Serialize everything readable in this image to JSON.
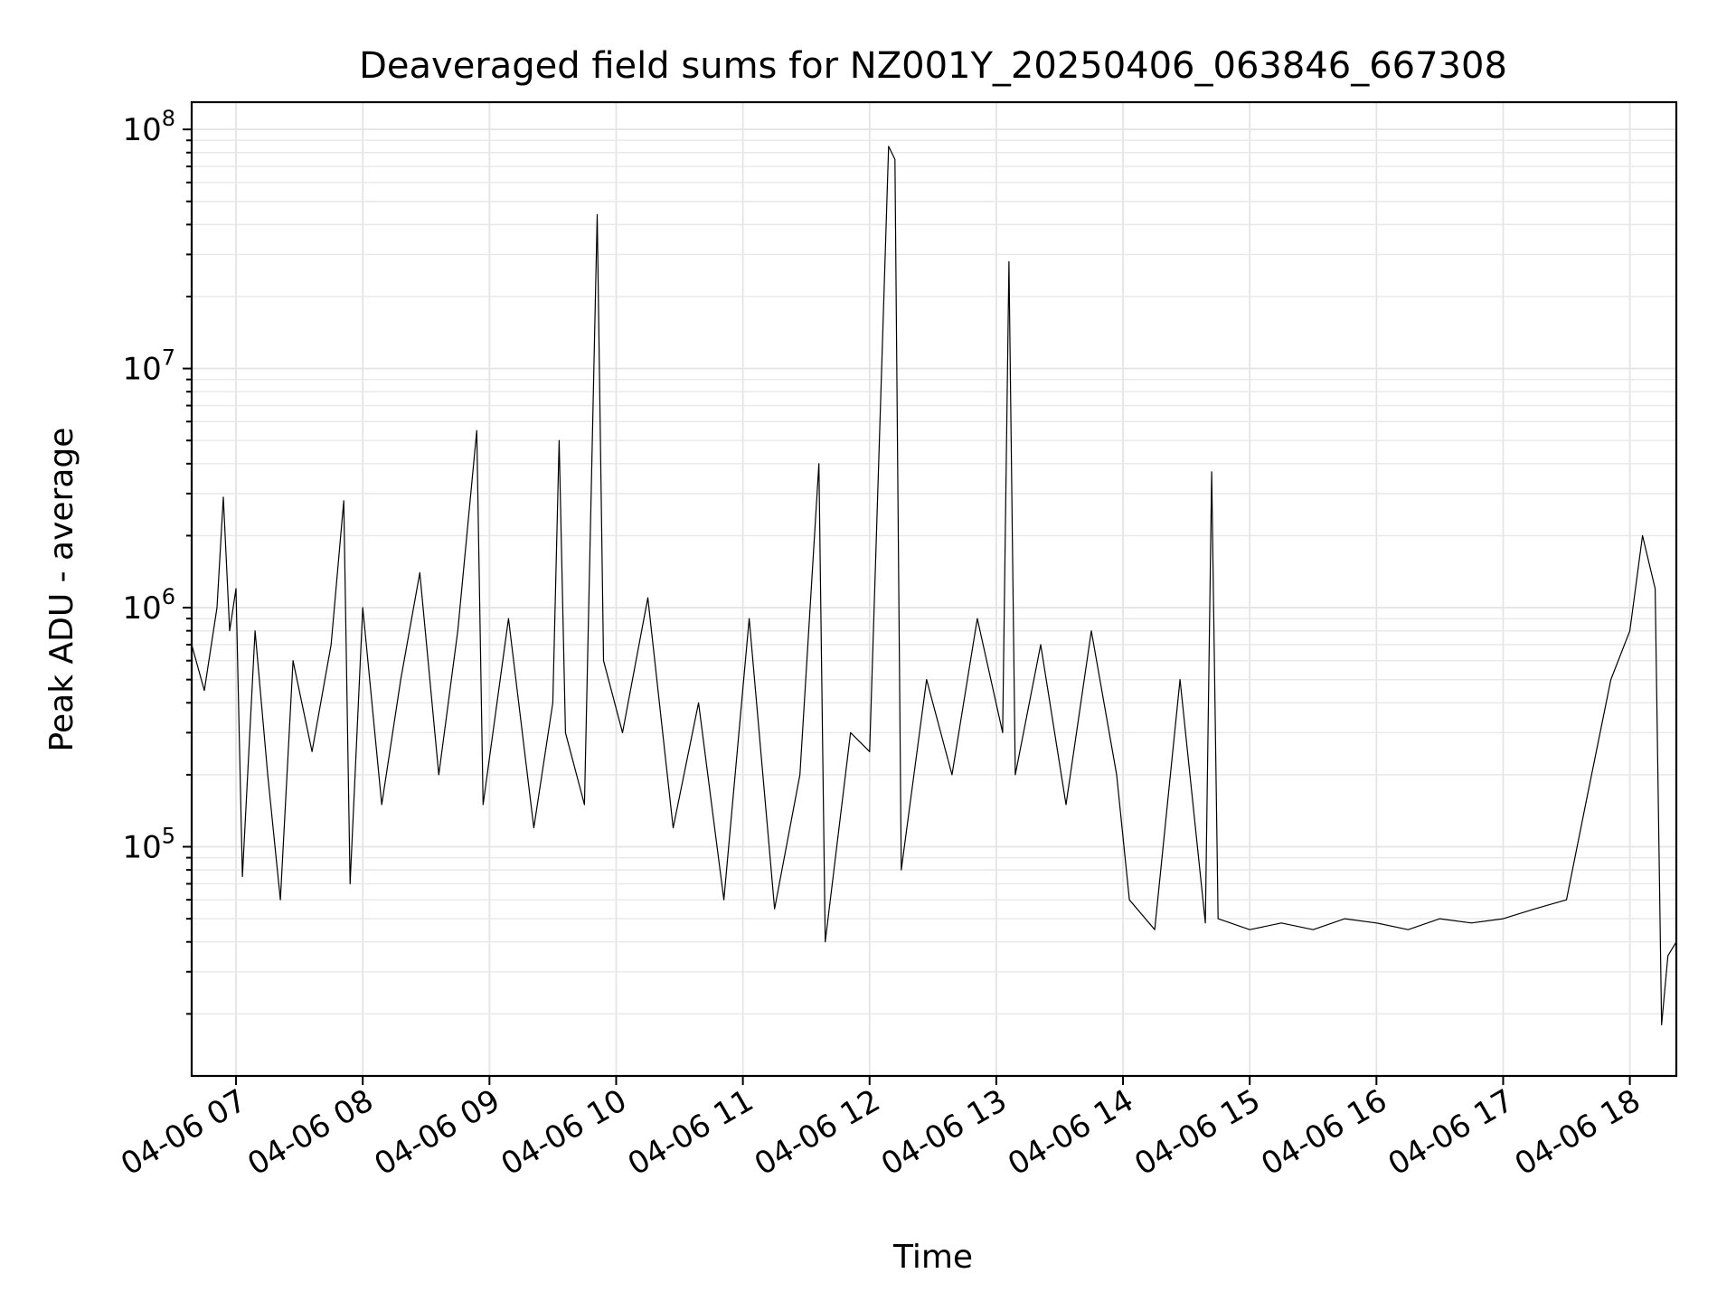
{
  "chart_data": {
    "type": "line",
    "title": "Deaveraged field sums for NZ001Y_20250406_063846_667308",
    "xlabel": "Time",
    "ylabel": "Peak ADU - average",
    "x_scale": "time",
    "y_scale": "log",
    "xlim": [
      "2025-04-06 06:39",
      "2025-04-06 18:22"
    ],
    "ylim": [
      11000,
      130000000
    ],
    "grid": true,
    "x_ticks": [
      {
        "value": "2025-04-06 07:00",
        "label": "04-06 07"
      },
      {
        "value": "2025-04-06 08:00",
        "label": "04-06 08"
      },
      {
        "value": "2025-04-06 09:00",
        "label": "04-06 09"
      },
      {
        "value": "2025-04-06 10:00",
        "label": "04-06 10"
      },
      {
        "value": "2025-04-06 11:00",
        "label": "04-06 11"
      },
      {
        "value": "2025-04-06 12:00",
        "label": "04-06 12"
      },
      {
        "value": "2025-04-06 13:00",
        "label": "04-06 13"
      },
      {
        "value": "2025-04-06 14:00",
        "label": "04-06 14"
      },
      {
        "value": "2025-04-06 15:00",
        "label": "04-06 15"
      },
      {
        "value": "2025-04-06 16:00",
        "label": "04-06 16"
      },
      {
        "value": "2025-04-06 17:00",
        "label": "04-06 17"
      },
      {
        "value": "2025-04-06 18:00",
        "label": "04-06 18"
      }
    ],
    "y_ticks": [
      {
        "value": 100000,
        "base": "10",
        "exp": "5"
      },
      {
        "value": 1000000,
        "base": "10",
        "exp": "6"
      },
      {
        "value": 10000000,
        "base": "10",
        "exp": "7"
      },
      {
        "value": 100000000,
        "base": "10",
        "exp": "8"
      }
    ],
    "colors": {
      "series": "#000000",
      "grid": "#e4e4e4"
    },
    "series": [
      {
        "points": [
          [
            "2025-04-06 06:39",
            700000
          ],
          [
            "2025-04-06 06:45",
            450000
          ],
          [
            "2025-04-06 06:51",
            1000000
          ],
          [
            "2025-04-06 06:54",
            2900000
          ],
          [
            "2025-04-06 06:57",
            800000
          ],
          [
            "2025-04-06 07:00",
            1200000
          ],
          [
            "2025-04-06 07:03",
            75000
          ],
          [
            "2025-04-06 07:09",
            800000
          ],
          [
            "2025-04-06 07:15",
            200000
          ],
          [
            "2025-04-06 07:21",
            60000
          ],
          [
            "2025-04-06 07:27",
            600000
          ],
          [
            "2025-04-06 07:36",
            250000
          ],
          [
            "2025-04-06 07:45",
            700000
          ],
          [
            "2025-04-06 07:51",
            2800000
          ],
          [
            "2025-04-06 07:54",
            70000
          ],
          [
            "2025-04-06 08:00",
            1000000
          ],
          [
            "2025-04-06 08:09",
            150000
          ],
          [
            "2025-04-06 08:18",
            500000
          ],
          [
            "2025-04-06 08:27",
            1400000
          ],
          [
            "2025-04-06 08:36",
            200000
          ],
          [
            "2025-04-06 08:45",
            800000
          ],
          [
            "2025-04-06 08:54",
            5500000
          ],
          [
            "2025-04-06 08:57",
            150000
          ],
          [
            "2025-04-06 09:09",
            900000
          ],
          [
            "2025-04-06 09:21",
            120000
          ],
          [
            "2025-04-06 09:30",
            400000
          ],
          [
            "2025-04-06 09:33",
            5000000
          ],
          [
            "2025-04-06 09:36",
            300000
          ],
          [
            "2025-04-06 09:45",
            150000
          ],
          [
            "2025-04-06 09:51",
            44000000
          ],
          [
            "2025-04-06 09:54",
            600000
          ],
          [
            "2025-04-06 10:03",
            300000
          ],
          [
            "2025-04-06 10:15",
            1100000
          ],
          [
            "2025-04-06 10:27",
            120000
          ],
          [
            "2025-04-06 10:39",
            400000
          ],
          [
            "2025-04-06 10:51",
            60000
          ],
          [
            "2025-04-06 11:03",
            900000
          ],
          [
            "2025-04-06 11:15",
            55000
          ],
          [
            "2025-04-06 11:27",
            200000
          ],
          [
            "2025-04-06 11:36",
            4000000
          ],
          [
            "2025-04-06 11:39",
            40000
          ],
          [
            "2025-04-06 11:51",
            300000
          ],
          [
            "2025-04-06 12:00",
            250000
          ],
          [
            "2025-04-06 12:09",
            85000000
          ],
          [
            "2025-04-06 12:12",
            75000000
          ],
          [
            "2025-04-06 12:15",
            80000
          ],
          [
            "2025-04-06 12:27",
            500000
          ],
          [
            "2025-04-06 12:39",
            200000
          ],
          [
            "2025-04-06 12:51",
            900000
          ],
          [
            "2025-04-06 13:03",
            300000
          ],
          [
            "2025-04-06 13:06",
            28000000
          ],
          [
            "2025-04-06 13:09",
            200000
          ],
          [
            "2025-04-06 13:21",
            700000
          ],
          [
            "2025-04-06 13:33",
            150000
          ],
          [
            "2025-04-06 13:45",
            800000
          ],
          [
            "2025-04-06 13:57",
            200000
          ],
          [
            "2025-04-06 14:03",
            60000
          ],
          [
            "2025-04-06 14:15",
            45000
          ],
          [
            "2025-04-06 14:27",
            500000
          ],
          [
            "2025-04-06 14:39",
            48000
          ],
          [
            "2025-04-06 14:42",
            3700000
          ],
          [
            "2025-04-06 14:45",
            50000
          ],
          [
            "2025-04-06 15:00",
            45000
          ],
          [
            "2025-04-06 15:15",
            48000
          ],
          [
            "2025-04-06 15:30",
            45000
          ],
          [
            "2025-04-06 15:45",
            50000
          ],
          [
            "2025-04-06 16:00",
            48000
          ],
          [
            "2025-04-06 16:15",
            45000
          ],
          [
            "2025-04-06 16:30",
            50000
          ],
          [
            "2025-04-06 16:45",
            48000
          ],
          [
            "2025-04-06 17:00",
            50000
          ],
          [
            "2025-04-06 17:15",
            55000
          ],
          [
            "2025-04-06 17:30",
            60000
          ],
          [
            "2025-04-06 17:39",
            150000
          ],
          [
            "2025-04-06 17:51",
            500000
          ],
          [
            "2025-04-06 18:00",
            800000
          ],
          [
            "2025-04-06 18:06",
            2000000
          ],
          [
            "2025-04-06 18:12",
            1200000
          ],
          [
            "2025-04-06 18:15",
            18000
          ],
          [
            "2025-04-06 18:18",
            35000
          ],
          [
            "2025-04-06 18:22",
            40000
          ]
        ]
      }
    ]
  }
}
